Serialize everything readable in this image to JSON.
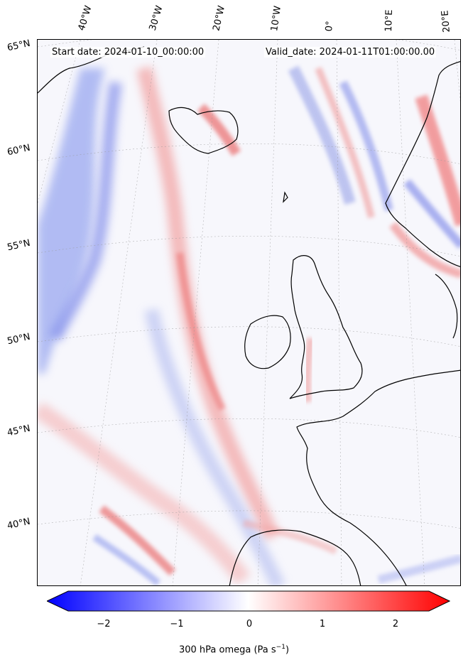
{
  "header": {
    "start_date": "Start date: 2024-01-10_00:00:00",
    "valid_date": "Valid_date: 2024-01-11T01:00:00.00"
  },
  "longitude_labels": [
    "40°W",
    "30°W",
    "20°W",
    "10°W",
    "0°",
    "10°E",
    "20°E"
  ],
  "latitude_labels": [
    "65°N",
    "60°N",
    "55°N",
    "50°N",
    "45°N",
    "40°N"
  ],
  "colorbar": {
    "ticks": [
      "−2",
      "−1",
      "0",
      "1",
      "2"
    ],
    "label_prefix": "300 hPa omega (Pa s",
    "label_exponent": "−1",
    "label_suffix": ")",
    "min_color": "#0000ff",
    "mid_color": "#ffffff",
    "max_color": "#ff0000"
  },
  "colors": {
    "coastline": "#000000",
    "gridline": "#999999"
  }
}
